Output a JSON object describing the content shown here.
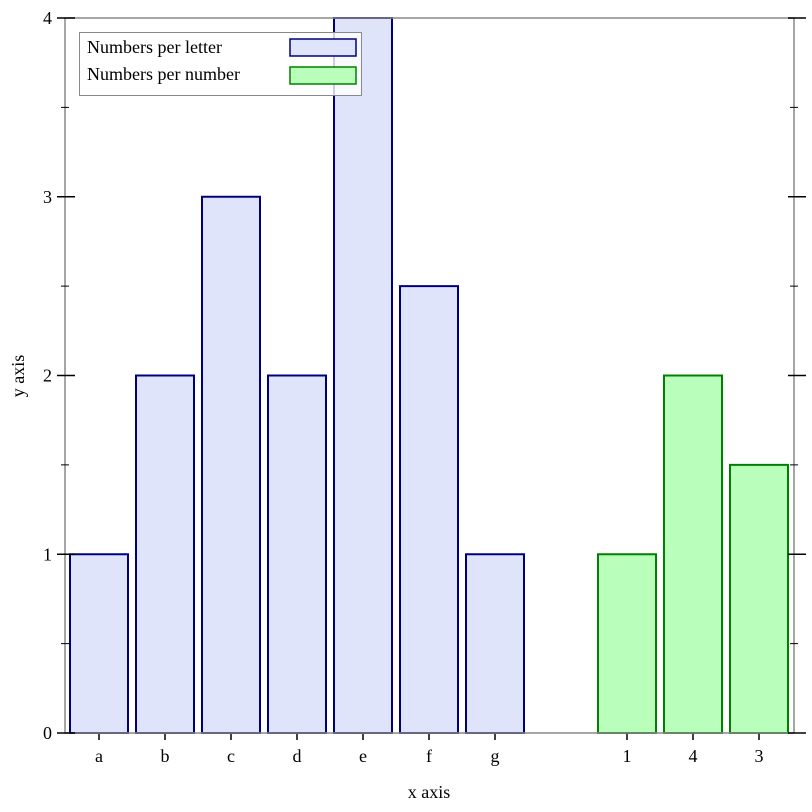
{
  "chart_data": {
    "type": "bar",
    "title": "",
    "xlabel": "x axis",
    "ylabel": "y axis",
    "ylim": [
      0,
      4
    ],
    "yticks": [
      "0",
      "1",
      "2",
      "3",
      "4"
    ],
    "grid": false,
    "legend_position": "top-left",
    "series": [
      {
        "name": "Numbers per letter",
        "categories": [
          "a",
          "b",
          "c",
          "d",
          "e",
          "f",
          "g"
        ],
        "values": [
          1,
          2,
          3,
          2,
          4,
          2.5,
          1
        ],
        "fill": "#e0e4fb",
        "stroke": "#00007f"
      },
      {
        "name": "Numbers per number",
        "categories": [
          "1",
          "4",
          "3"
        ],
        "values": [
          1,
          2,
          1.5
        ],
        "fill": "#b9ffbb",
        "stroke": "#008000"
      }
    ]
  }
}
